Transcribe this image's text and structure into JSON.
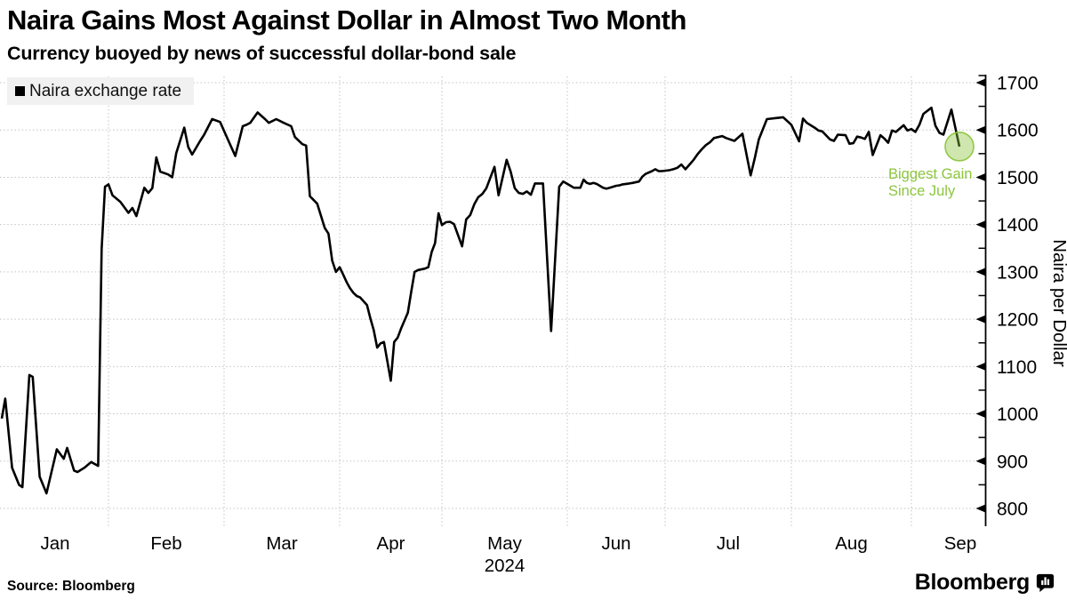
{
  "header": {
    "title": "Naira Gains Most Against Dollar in Almost Two Month",
    "subtitle": "Currency buoyed by news of successful dollar-bond sale"
  },
  "legend": {
    "label": "Naira exchange rate"
  },
  "footer": {
    "source": "Source:  Bloomberg",
    "brand": "Bloomberg"
  },
  "chart_data": {
    "type": "line",
    "title": "Naira Gains Most Against Dollar in Almost Two Month",
    "series_name": "Naira exchange rate",
    "line_color": "#000000",
    "grid": {
      "style": "dotted",
      "color": "#c3c3c3"
    },
    "x_axis": {
      "months": [
        "Jan",
        "Feb",
        "Mar",
        "Apr",
        "May",
        "Jun",
        "Jul",
        "Aug",
        "Sep"
      ],
      "year_label": "2024"
    },
    "y_axis": {
      "label": "Naira per Dollar",
      "side": "right",
      "min": 800,
      "max": 1700,
      "tick_step": 100,
      "minor_tick_step": 50
    },
    "annotation": {
      "line1": "Biggest Gain",
      "line2": "Since July",
      "color": "#8cc63e",
      "marker": "circle-on-last-point"
    },
    "points": [
      [
        "2024-01-01",
        990
      ],
      [
        "2024-01-02",
        1032
      ],
      [
        "2024-01-04",
        886
      ],
      [
        "2024-01-06",
        850
      ],
      [
        "2024-01-07",
        845
      ],
      [
        "2024-01-09",
        1082
      ],
      [
        "2024-01-10",
        1078
      ],
      [
        "2024-01-12",
        867
      ],
      [
        "2024-01-14",
        832
      ],
      [
        "2024-01-17",
        925
      ],
      [
        "2024-01-19",
        905
      ],
      [
        "2024-01-20",
        928
      ],
      [
        "2024-01-22",
        880
      ],
      [
        "2024-01-23",
        877
      ],
      [
        "2024-01-25",
        886
      ],
      [
        "2024-01-27",
        898
      ],
      [
        "2024-01-29",
        890
      ],
      [
        "2024-01-30",
        1348
      ],
      [
        "2024-01-31",
        1480
      ],
      [
        "2024-02-01",
        1485
      ],
      [
        "2024-02-02",
        1462
      ],
      [
        "2024-02-04",
        1448
      ],
      [
        "2024-02-06",
        1425
      ],
      [
        "2024-02-07",
        1435
      ],
      [
        "2024-02-08",
        1418
      ],
      [
        "2024-02-10",
        1478
      ],
      [
        "2024-02-11",
        1467
      ],
      [
        "2024-02-12",
        1477
      ],
      [
        "2024-02-13",
        1542
      ],
      [
        "2024-02-14",
        1512
      ],
      [
        "2024-02-16",
        1506
      ],
      [
        "2024-02-17",
        1500
      ],
      [
        "2024-02-18",
        1551
      ],
      [
        "2024-02-20",
        1605
      ],
      [
        "2024-02-21",
        1564
      ],
      [
        "2024-02-22",
        1548
      ],
      [
        "2024-02-24",
        1577
      ],
      [
        "2024-02-25",
        1590
      ],
      [
        "2024-02-27",
        1623
      ],
      [
        "2024-02-29",
        1617
      ],
      [
        "2024-03-01",
        1598
      ],
      [
        "2024-03-04",
        1545
      ],
      [
        "2024-03-06",
        1608
      ],
      [
        "2024-03-07",
        1611
      ],
      [
        "2024-03-08",
        1615
      ],
      [
        "2024-03-10",
        1637
      ],
      [
        "2024-03-12",
        1623
      ],
      [
        "2024-03-13",
        1615
      ],
      [
        "2024-03-15",
        1623
      ],
      [
        "2024-03-17",
        1615
      ],
      [
        "2024-03-19",
        1608
      ],
      [
        "2024-03-20",
        1585
      ],
      [
        "2024-03-22",
        1570
      ],
      [
        "2024-03-23",
        1567
      ],
      [
        "2024-03-24",
        1460
      ],
      [
        "2024-03-26",
        1444
      ],
      [
        "2024-03-28",
        1393
      ],
      [
        "2024-03-29",
        1381
      ],
      [
        "2024-03-30",
        1324
      ],
      [
        "2024-03-31",
        1300
      ],
      [
        "2024-04-01",
        1310
      ],
      [
        "2024-04-02",
        1295
      ],
      [
        "2024-04-03",
        1279
      ],
      [
        "2024-04-04",
        1266
      ],
      [
        "2024-04-05",
        1256
      ],
      [
        "2024-04-06",
        1249
      ],
      [
        "2024-04-07",
        1246
      ],
      [
        "2024-04-09",
        1230
      ],
      [
        "2024-04-10",
        1202
      ],
      [
        "2024-04-11",
        1177
      ],
      [
        "2024-04-12",
        1140
      ],
      [
        "2024-04-13",
        1149
      ],
      [
        "2024-04-14",
        1152
      ],
      [
        "2024-04-16",
        1070
      ],
      [
        "2024-04-17",
        1152
      ],
      [
        "2024-04-18",
        1161
      ],
      [
        "2024-04-19",
        1180
      ],
      [
        "2024-04-21",
        1214
      ],
      [
        "2024-04-22",
        1258
      ],
      [
        "2024-04-23",
        1300
      ],
      [
        "2024-04-24",
        1304
      ],
      [
        "2024-04-26",
        1307
      ],
      [
        "2024-04-27",
        1310
      ],
      [
        "2024-04-28",
        1342
      ],
      [
        "2024-04-29",
        1361
      ],
      [
        "2024-04-30",
        1424
      ],
      [
        "2024-05-01",
        1399
      ],
      [
        "2024-05-02",
        1405
      ],
      [
        "2024-05-03",
        1406
      ],
      [
        "2024-05-04",
        1401
      ],
      [
        "2024-05-06",
        1354
      ],
      [
        "2024-05-07",
        1411
      ],
      [
        "2024-05-08",
        1420
      ],
      [
        "2024-05-09",
        1443
      ],
      [
        "2024-05-10",
        1458
      ],
      [
        "2024-05-11",
        1465
      ],
      [
        "2024-05-12",
        1477
      ],
      [
        "2024-05-14",
        1522
      ],
      [
        "2024-05-15",
        1462
      ],
      [
        "2024-05-17",
        1537
      ],
      [
        "2024-05-18",
        1512
      ],
      [
        "2024-05-19",
        1477
      ],
      [
        "2024-05-20",
        1467
      ],
      [
        "2024-05-21",
        1465
      ],
      [
        "2024-05-22",
        1470
      ],
      [
        "2024-05-23",
        1463
      ],
      [
        "2024-05-24",
        1487
      ],
      [
        "2024-05-26",
        1487
      ],
      [
        "2024-05-28",
        1175
      ],
      [
        "2024-05-30",
        1480
      ],
      [
        "2024-05-31",
        1491
      ],
      [
        "2024-06-02",
        1482
      ],
      [
        "2024-06-03",
        1478
      ],
      [
        "2024-06-05",
        1478
      ],
      [
        "2024-06-06",
        1495
      ],
      [
        "2024-06-07",
        1488
      ],
      [
        "2024-06-08",
        1486
      ],
      [
        "2024-06-09",
        1488
      ],
      [
        "2024-06-10",
        1486
      ],
      [
        "2024-06-12",
        1478
      ],
      [
        "2024-06-13",
        1476
      ],
      [
        "2024-06-14",
        1478
      ],
      [
        "2024-06-16",
        1482
      ],
      [
        "2024-06-17",
        1483
      ],
      [
        "2024-06-18",
        1485
      ],
      [
        "2024-06-20",
        1487
      ],
      [
        "2024-06-21",
        1488
      ],
      [
        "2024-06-23",
        1491
      ],
      [
        "2024-06-24",
        1501
      ],
      [
        "2024-06-25",
        1507
      ],
      [
        "2024-06-27",
        1513
      ],
      [
        "2024-06-28",
        1517
      ],
      [
        "2024-06-29",
        1513
      ],
      [
        "2024-06-30",
        1513
      ],
      [
        "2024-07-02",
        1515
      ],
      [
        "2024-07-03",
        1517
      ],
      [
        "2024-07-04",
        1520
      ],
      [
        "2024-07-05",
        1527
      ],
      [
        "2024-07-06",
        1517
      ],
      [
        "2024-07-07",
        1527
      ],
      [
        "2024-07-08",
        1537
      ],
      [
        "2024-07-09",
        1549
      ],
      [
        "2024-07-10",
        1559
      ],
      [
        "2024-07-11",
        1568
      ],
      [
        "2024-07-12",
        1574
      ],
      [
        "2024-07-13",
        1583
      ],
      [
        "2024-07-15",
        1587
      ],
      [
        "2024-07-16",
        1583
      ],
      [
        "2024-07-18",
        1577
      ],
      [
        "2024-07-20",
        1592
      ],
      [
        "2024-07-22",
        1504
      ],
      [
        "2024-07-23",
        1540
      ],
      [
        "2024-07-24",
        1580
      ],
      [
        "2024-07-26",
        1623
      ],
      [
        "2024-07-28",
        1625
      ],
      [
        "2024-07-30",
        1627
      ],
      [
        "2024-08-01",
        1611
      ],
      [
        "2024-08-03",
        1576
      ],
      [
        "2024-08-04",
        1624
      ],
      [
        "2024-08-05",
        1615
      ],
      [
        "2024-08-07",
        1605
      ],
      [
        "2024-08-08",
        1599
      ],
      [
        "2024-08-09",
        1597
      ],
      [
        "2024-08-11",
        1580
      ],
      [
        "2024-08-12",
        1577
      ],
      [
        "2024-08-13",
        1590
      ],
      [
        "2024-08-15",
        1589
      ],
      [
        "2024-08-16",
        1571
      ],
      [
        "2024-08-17",
        1572
      ],
      [
        "2024-08-18",
        1586
      ],
      [
        "2024-08-19",
        1584
      ],
      [
        "2024-08-20",
        1581
      ],
      [
        "2024-08-21",
        1596
      ],
      [
        "2024-08-22",
        1547
      ],
      [
        "2024-08-24",
        1589
      ],
      [
        "2024-08-25",
        1582
      ],
      [
        "2024-08-26",
        1573
      ],
      [
        "2024-08-27",
        1599
      ],
      [
        "2024-08-28",
        1596
      ],
      [
        "2024-08-30",
        1610
      ],
      [
        "2024-08-31",
        1599
      ],
      [
        "2024-09-01",
        1602
      ],
      [
        "2024-09-02",
        1596
      ],
      [
        "2024-09-03",
        1611
      ],
      [
        "2024-09-04",
        1634
      ],
      [
        "2024-09-06",
        1647
      ],
      [
        "2024-09-07",
        1609
      ],
      [
        "2024-09-08",
        1594
      ],
      [
        "2024-09-09",
        1590
      ],
      [
        "2024-09-11",
        1643
      ],
      [
        "2024-09-13",
        1565
      ]
    ]
  }
}
